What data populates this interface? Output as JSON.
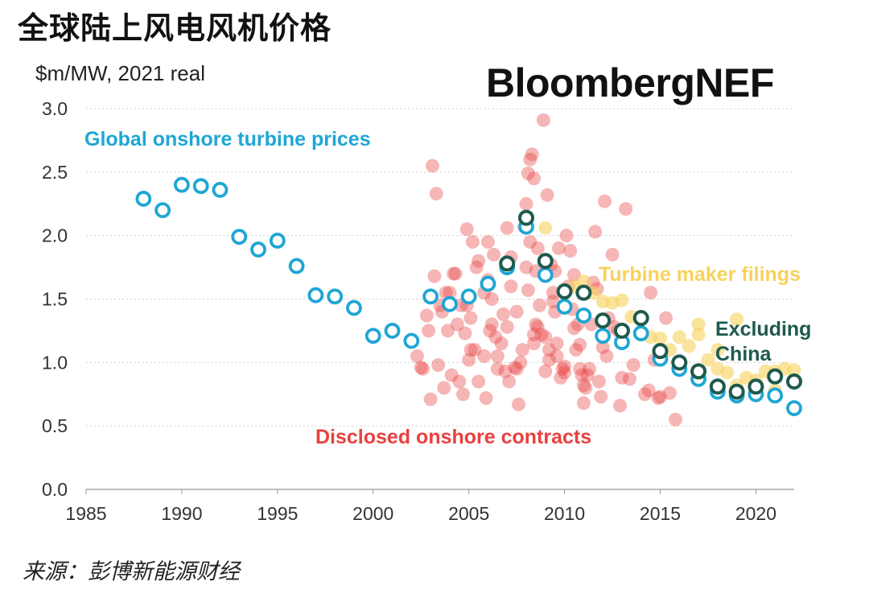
{
  "title": "全球陆上风电风机价格",
  "brand": "BloombergNEF",
  "source": "来源：彭博新能源财经",
  "chart_data": {
    "type": "scatter",
    "ylabel": "$m/MW, 2021 real",
    "xlim": [
      1985,
      2022
    ],
    "ylim": [
      0,
      3.0
    ],
    "x_ticks": [
      1985,
      1990,
      1995,
      2000,
      2005,
      2010,
      2015,
      2020
    ],
    "y_ticks": [
      "0.0",
      "0.5",
      "1.0",
      "1.5",
      "2.0",
      "2.5",
      "3.0"
    ],
    "grid": true,
    "colors": {
      "global": "#1fa6d4",
      "excluding_china": "#1e5a4d",
      "filings": "#f7d25c",
      "contracts": "#e84040"
    },
    "annotations": {
      "global": "Global onshore turbine prices",
      "filings": "Turbine maker filings",
      "excluding_china_1": "Excluding",
      "excluding_china_2": "China",
      "contracts": "Disclosed onshore contracts"
    },
    "series": [
      {
        "name": "Global onshore turbine prices",
        "x": [
          1988,
          1989,
          1990,
          1991,
          1992,
          1993,
          1994,
          1995,
          1996,
          1997,
          1998,
          1999,
          2000,
          2001,
          2002,
          2003,
          2004,
          2005,
          2006,
          2007,
          2008,
          2009,
          2010,
          2011,
          2012,
          2013,
          2014,
          2015,
          2016,
          2017,
          2018,
          2019,
          2020,
          2021,
          2022
        ],
        "y": [
          2.29,
          2.2,
          2.4,
          2.39,
          2.36,
          1.99,
          1.89,
          1.96,
          1.76,
          1.53,
          1.52,
          1.43,
          1.21,
          1.25,
          1.17,
          1.52,
          1.46,
          1.52,
          1.62,
          1.75,
          2.07,
          1.69,
          1.44,
          1.37,
          1.21,
          1.16,
          1.23,
          1.03,
          0.95,
          0.87,
          0.77,
          0.74,
          0.75,
          0.74,
          0.64
        ]
      },
      {
        "name": "Excluding China",
        "x": [
          2007,
          2008,
          2009,
          2010,
          2011,
          2012,
          2013,
          2014,
          2015,
          2016,
          2017,
          2018,
          2019,
          2020,
          2021,
          2022
        ],
        "y": [
          1.78,
          2.14,
          1.8,
          1.56,
          1.55,
          1.33,
          1.25,
          1.35,
          1.09,
          1.0,
          0.93,
          0.81,
          0.77,
          0.81,
          0.89,
          0.85
        ]
      },
      {
        "name": "Turbine maker filings",
        "x": [
          2009.0,
          2010.5,
          2011.0,
          2011.5,
          2012.0,
          2012.5,
          2013.0,
          2013.5,
          2014.0,
          2014.5,
          2015.0,
          2015.5,
          2016.0,
          2016.5,
          2017.0,
          2017.5,
          2018.0,
          2018.5,
          2019.0,
          2019.5,
          2020.0,
          2020.5,
          2021.0,
          2021.5,
          2022.0,
          2017.0,
          2018.0,
          2019.0,
          2016.0,
          2021.0
        ],
        "y": [
          2.06,
          1.6,
          1.64,
          1.55,
          1.48,
          1.47,
          1.49,
          1.36,
          1.35,
          1.2,
          1.19,
          1.1,
          1.2,
          1.13,
          1.3,
          1.02,
          0.95,
          0.92,
          1.34,
          0.88,
          0.86,
          0.93,
          0.93,
          0.95,
          0.94,
          1.22,
          1.1,
          0.82,
          0.98,
          0.78
        ]
      },
      {
        "name": "Disclosed onshore contracts",
        "x": [
          2002.3,
          2002.6,
          2002.9,
          2003.1,
          2003.3,
          2002.8,
          2003.7,
          2003.9,
          2004.1,
          2004.3,
          2004.6,
          2004.9,
          2005.1,
          2005.3,
          2005.5,
          2005.8,
          2006.0,
          2006.2,
          2006.5,
          2006.7,
          2007.0,
          2007.2,
          2007.5,
          2007.7,
          2008.0,
          2008.2,
          2008.4,
          2008.6,
          2008.9,
          2009.1,
          2009.4,
          2009.6,
          2009.9,
          2010.1,
          2010.3,
          2010.6,
          2010.9,
          2011.1,
          2011.4,
          2011.6,
          2011.9,
          2012.2,
          2012.5,
          2012.8,
          2013.2,
          2013.6,
          2014.0,
          2014.5,
          2014.9,
          2015.3,
          2015.8,
          2003.0,
          2003.5,
          2004.0,
          2004.5,
          2005.0,
          2005.5,
          2006.0,
          2006.5,
          2007.0,
          2007.5,
          2008.0,
          2008.5,
          2009.0,
          2009.5,
          2010.0,
          2010.5,
          2011.0,
          2011.5,
          2012.0,
          2003.2,
          2004.2,
          2005.2,
          2006.2,
          2007.2,
          2008.2,
          2009.2,
          2010.2,
          2011.2,
          2003.8,
          2004.8,
          2005.8,
          2006.8,
          2007.8,
          2008.8,
          2009.8,
          2010.8,
          2004.4,
          2005.4,
          2006.4,
          2007.4,
          2008.4,
          2009.4,
          2007.9,
          2008.1,
          2008.3,
          2008.7,
          2009.3,
          2009.5,
          2009.7,
          2010.4,
          2010.7,
          2011.3,
          2011.8,
          2012.3,
          2012.9,
          2013.0,
          2014.2,
          2014.7,
          2015.0,
          2015.5,
          2002.5,
          2003.4,
          2004.7,
          2005.9,
          2006.9,
          2007.6,
          2008.5,
          2009.0,
          2010.0,
          2011.0,
          2012.6,
          2013.4,
          2014.4,
          2008.1,
          2008.4,
          2009.6,
          2010.5,
          2005.1,
          2006.3,
          2007.1,
          2004.9,
          2006.1,
          2008.6,
          2010.8,
          2011.7,
          2012.1,
          2003.6,
          2009.2
        ],
        "y": [
          1.05,
          0.95,
          1.25,
          2.55,
          2.33,
          1.37,
          0.8,
          1.25,
          0.9,
          1.7,
          1.45,
          2.05,
          1.35,
          1.1,
          0.85,
          1.55,
          1.95,
          1.3,
          0.95,
          1.15,
          2.06,
          1.6,
          1.4,
          1.0,
          2.25,
          2.6,
          2.45,
          1.9,
          2.91,
          2.32,
          1.55,
          1.15,
          0.95,
          2.0,
          1.88,
          1.1,
          0.9,
          0.8,
          1.3,
          2.03,
          0.73,
          1.05,
          1.85,
          1.25,
          2.21,
          0.98,
          1.22,
          1.55,
          0.72,
          1.35,
          0.55,
          0.71,
          1.45,
          1.55,
          0.85,
          1.02,
          1.8,
          1.65,
          1.05,
          1.28,
          0.95,
          1.75,
          1.72,
          1.2,
          1.4,
          0.97,
          1.27,
          0.68,
          1.63,
          1.12,
          1.68,
          1.7,
          1.95,
          1.5,
          1.83,
          1.95,
          1.1,
          1.6,
          0.9,
          1.55,
          1.23,
          1.05,
          1.38,
          1.1,
          1.22,
          0.88,
          0.95,
          1.3,
          1.75,
          1.2,
          0.96,
          1.15,
          1.48,
          2.07,
          1.57,
          2.64,
          1.45,
          1.77,
          1.72,
          1.9,
          1.42,
          1.3,
          0.95,
          0.85,
          1.35,
          0.66,
          0.88,
          0.75,
          1.02,
          0.73,
          0.76,
          0.96,
          0.98,
          0.75,
          0.72,
          0.93,
          0.67,
          1.3,
          0.93,
          0.92,
          0.82,
          1.28,
          0.87,
          0.78,
          2.49,
          1.22,
          1.05,
          1.69,
          1.1,
          1.85,
          0.85,
          1.45,
          1.25,
          1.28,
          1.14,
          1.58,
          2.27,
          1.4,
          1.02
        ]
      }
    ]
  }
}
